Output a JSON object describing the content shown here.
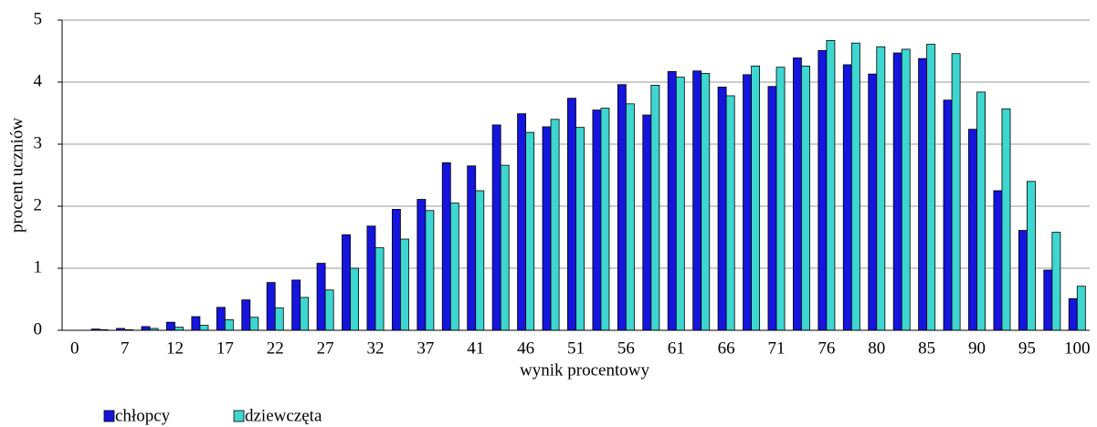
{
  "chart_data": {
    "type": "bar",
    "x_label": "wynik procentowy",
    "y_label": "procent uczniów",
    "categories": [
      "0",
      null,
      "7",
      null,
      "12",
      null,
      "17",
      null,
      "22",
      null,
      "27",
      null,
      "32",
      null,
      "37",
      null,
      "41",
      null,
      "46",
      null,
      "51",
      null,
      "56",
      null,
      "61",
      null,
      "66",
      null,
      "71",
      null,
      "76",
      null,
      "80",
      null,
      "85",
      null,
      "90",
      null,
      "95",
      null,
      "100"
    ],
    "series": [
      {
        "name": "chłopcy",
        "color": "#1515dd",
        "values": [
          0,
          0.02,
          0.03,
          0.06,
          0.13,
          0.22,
          0.37,
          0.49,
          0.77,
          0.81,
          1.08,
          1.54,
          1.68,
          1.95,
          2.11,
          2.7,
          2.65,
          3.31,
          3.49,
          3.28,
          3.74,
          3.55,
          3.96,
          3.47,
          4.17,
          4.18,
          3.92,
          4.12,
          3.93,
          4.39,
          4.51,
          4.28,
          4.13,
          4.47,
          4.38,
          3.71,
          3.24,
          2.25,
          1.61,
          0.97,
          0.51
        ]
      },
      {
        "name": "dziewczęta",
        "color": "#3dd6d0",
        "values": [
          0,
          0.01,
          0.01,
          0.03,
          0.05,
          0.08,
          0.17,
          0.21,
          0.36,
          0.53,
          0.65,
          1.0,
          1.33,
          1.47,
          1.93,
          2.05,
          2.25,
          2.66,
          3.19,
          3.4,
          3.27,
          3.58,
          3.65,
          3.95,
          4.08,
          4.14,
          3.78,
          4.26,
          4.24,
          4.26,
          4.67,
          4.63,
          4.57,
          4.53,
          4.61,
          4.46,
          3.84,
          3.57,
          2.4,
          1.58,
          0.71
        ]
      }
    ],
    "ylim": [
      0,
      5
    ],
    "yticks": [
      0,
      1,
      2,
      3,
      4,
      5
    ],
    "grid": true,
    "legend": "bottom-left"
  }
}
